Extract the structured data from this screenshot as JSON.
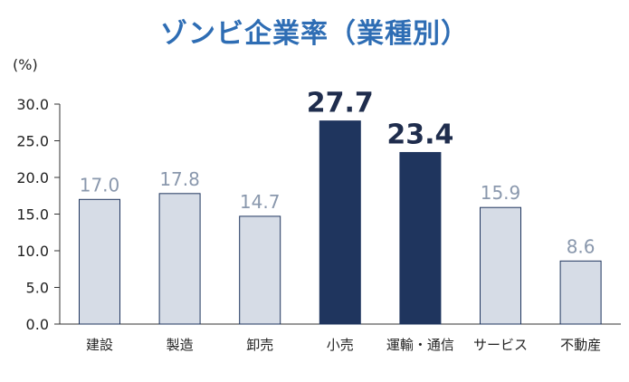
{
  "colors": {
    "title": "#2e6db4",
    "bar_normal": "#d6dce6",
    "bar_highlight": "#1f355e",
    "label_normal": "#8a98ad",
    "label_highlight": "#1f2d4d"
  },
  "chart_data": {
    "type": "bar",
    "title": "ゾンビ企業率（業種別）",
    "ylabel": "(%)",
    "xlabel": "",
    "ylim": [
      0,
      30
    ],
    "yticks": [
      "0.0",
      "5.0",
      "10.0",
      "15.0",
      "20.0",
      "25.0",
      "30.0"
    ],
    "grid": false,
    "categories": [
      "建設",
      "製造",
      "卸売",
      "小売",
      "運輸・通信",
      "サービス",
      "不動産"
    ],
    "values": [
      17.0,
      17.8,
      14.7,
      27.7,
      23.4,
      15.9,
      8.6
    ],
    "value_labels": [
      "17.0",
      "17.8",
      "14.7",
      "27.7",
      "23.4",
      "15.9",
      "8.6"
    ],
    "highlighted": [
      false,
      false,
      false,
      true,
      true,
      false,
      false
    ]
  }
}
